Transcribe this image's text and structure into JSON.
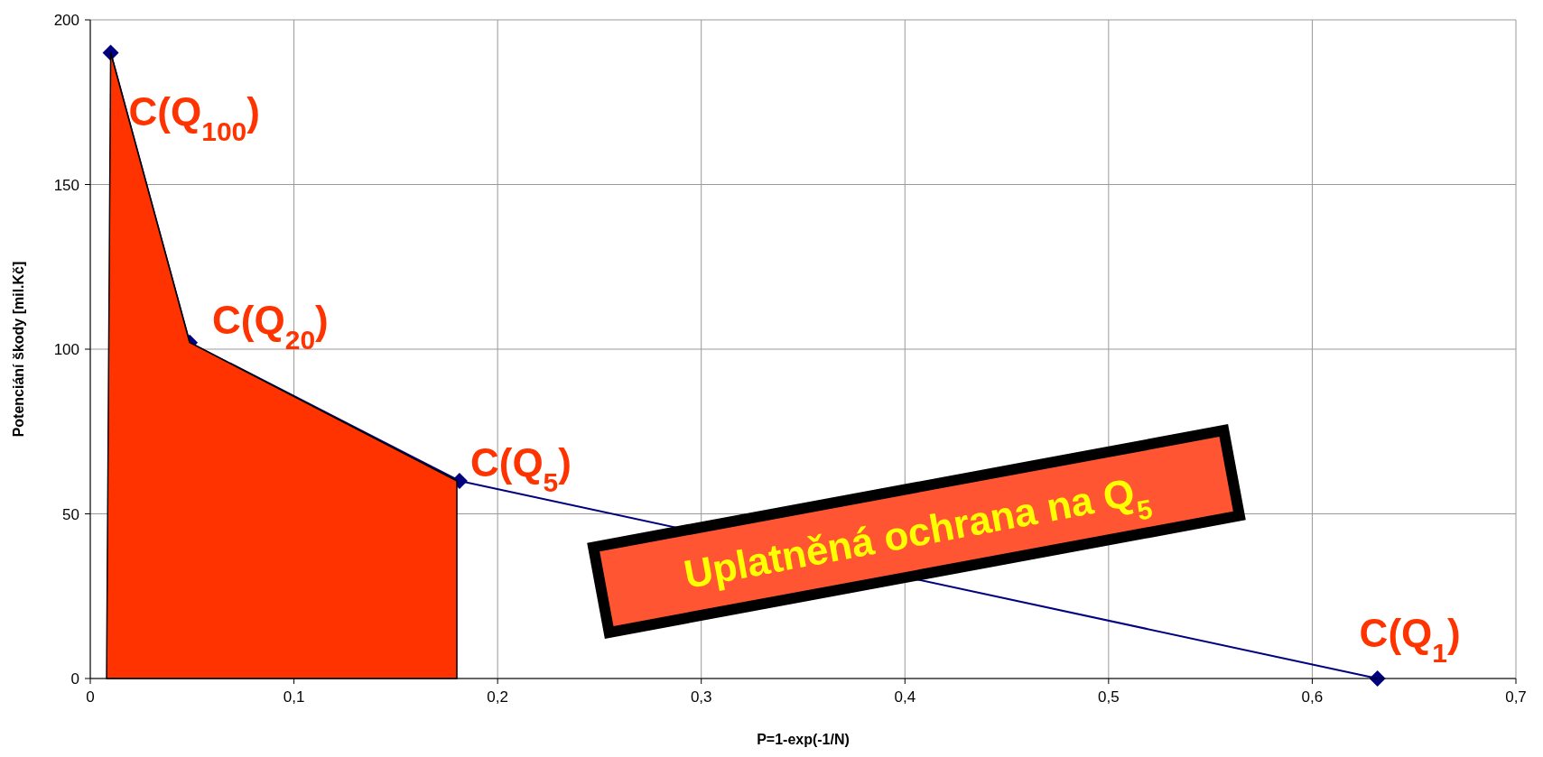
{
  "chart_data": {
    "type": "line",
    "xlabel": "P=1-exp(-1/N)",
    "ylabel": "Potenciání škody [mil.Kč]",
    "xlim": [
      0,
      0.7
    ],
    "xticks": [
      0,
      {
        "value": 0.1,
        "label": "0,1"
      },
      {
        "value": 0.2,
        "label": "0,2"
      },
      {
        "value": 0.3,
        "label": "0,3"
      },
      {
        "value": 0.4,
        "label": "0,4"
      },
      {
        "value": 0.5,
        "label": "0,5"
      },
      {
        "value": 0.6,
        "label": "0,6"
      },
      {
        "value": 0.7,
        "label": "0,7"
      }
    ],
    "ylim": [
      0,
      200
    ],
    "yticks": [
      0,
      50,
      100,
      150,
      200
    ],
    "grid": true,
    "series": [
      {
        "color": "#000080",
        "marker": "diamond",
        "x": [
          0.01,
          0.0488,
          0.1813,
          0.632
        ],
        "values": [
          190,
          102,
          60,
          0
        ]
      },
      {
        "type": "area",
        "color": "#ff3300",
        "x": [
          0.008,
          0.01,
          0.0488,
          0.18,
          0.18
        ],
        "values": [
          0,
          190,
          102,
          60,
          0
        ]
      }
    ],
    "annotations": [
      {
        "text": "C(Q$_{100}$)",
        "x": 0.01,
        "y": 190
      },
      {
        "text": "C(Q$_{20}$)",
        "x": 0.0488,
        "y": 102
      },
      {
        "text": "C(Q$_{5}$)",
        "x": 0.1813,
        "y": 60
      },
      {
        "text": "C(Q$_{1}$)",
        "x": 0.632,
        "y": 0
      },
      "Uplatněná ochrana na Q$_{5}$"
    ]
  }
}
